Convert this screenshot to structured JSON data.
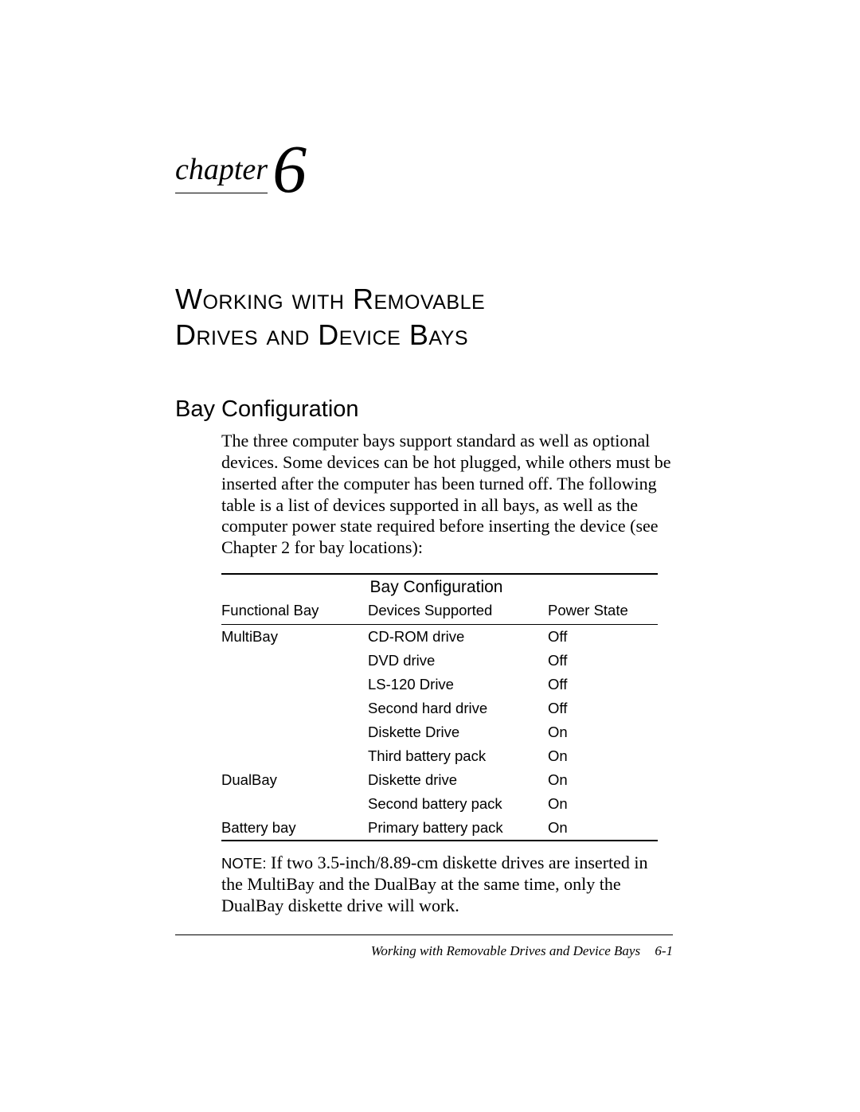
{
  "chapter": {
    "label": "chapter",
    "number": "6"
  },
  "title_line1": "Working with Removable",
  "title_line2": "Drives and Device Bays",
  "section_heading": "Bay Configuration",
  "intro_paragraph": "The three computer bays support standard as well as optional devices. Some devices can be hot plugged, while others must be inserted after the computer has been turned off. The following table is a list of devices supported in all bays, as well as the computer power state required before inserting the device (see Chapter 2 for bay locations):",
  "table": {
    "title": "Bay Configuration",
    "columns": [
      "Functional Bay",
      "Devices Supported",
      "Power State"
    ],
    "rows": [
      [
        "MultiBay",
        "CD-ROM drive",
        "Off"
      ],
      [
        "",
        "DVD drive",
        "Off"
      ],
      [
        "",
        "LS-120 Drive",
        "Off"
      ],
      [
        "",
        "Second hard drive",
        "Off"
      ],
      [
        "",
        "Diskette Drive",
        "On"
      ],
      [
        "",
        "Third battery pack",
        "On"
      ],
      [
        "DualBay",
        "Diskette drive",
        "On"
      ],
      [
        "",
        "Second battery pack",
        "On"
      ],
      [
        "Battery bay",
        "Primary battery pack",
        "On"
      ]
    ]
  },
  "note": {
    "label": "NOTE:",
    "text": " If two 3.5-inch/8.89-cm diskette drives are inserted in the MultiBay and the DualBay at the same time, only the DualBay diskette drive will work."
  },
  "footer": {
    "text": "Working with Removable Drives and Device Bays",
    "page": "6-1"
  }
}
